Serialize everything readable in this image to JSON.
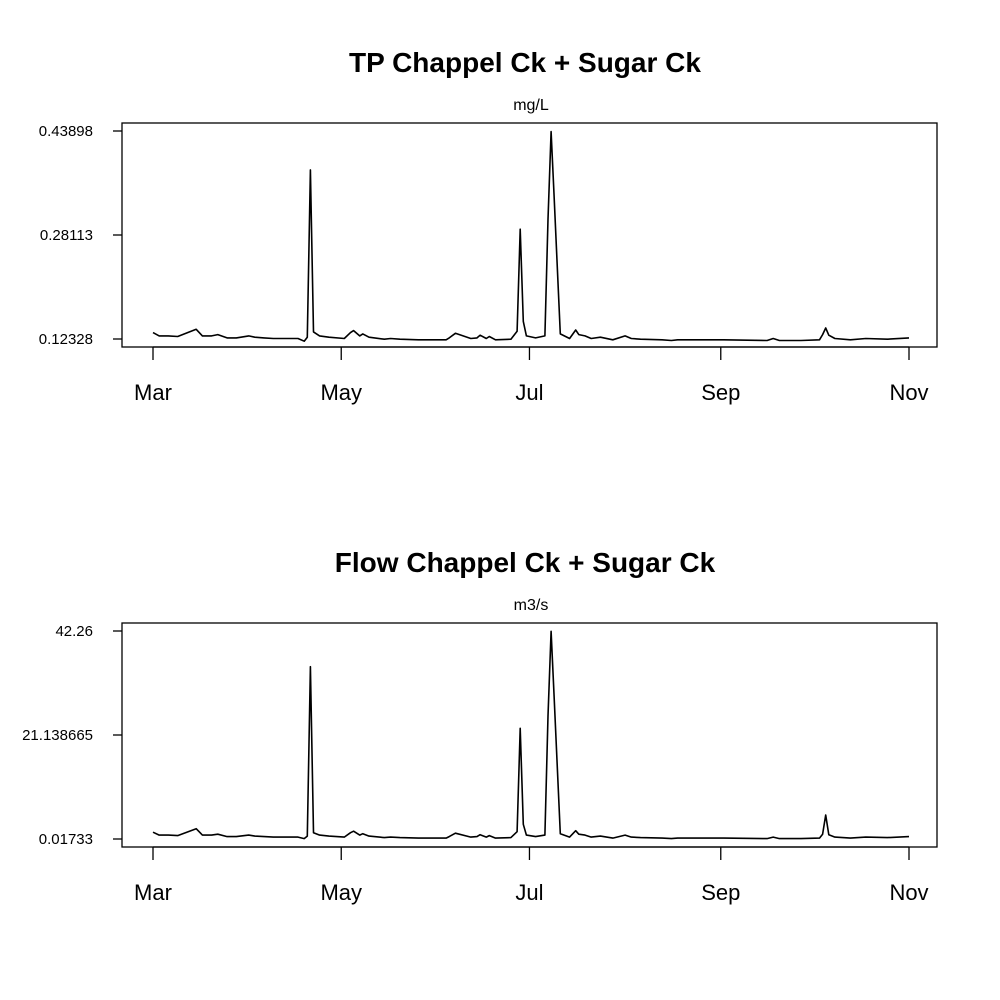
{
  "chart_data": [
    {
      "type": "line",
      "title": "TP Chappel Ck + Sugar Ck",
      "subtitle": "mg/L",
      "y_ticks": [
        "0.12328",
        "0.28113",
        "0.43898"
      ],
      "ylim": [
        0.12328,
        0.43898
      ],
      "x_ticks": [
        "Mar",
        "May",
        "Jul",
        "Sep",
        "Nov"
      ],
      "xlim": [
        "2000-03-01",
        "2000-11-01"
      ],
      "x_dates": [
        "2000-03-01",
        "2000-03-03",
        "2000-03-06",
        "2000-03-09",
        "2000-03-15",
        "2000-03-17",
        "2000-03-20",
        "2000-03-22",
        "2000-03-25",
        "2000-03-28",
        "2000-04-01",
        "2000-04-03",
        "2000-04-06",
        "2000-04-09",
        "2000-04-14",
        "2000-04-17",
        "2000-04-19",
        "2000-04-20",
        "2000-04-21",
        "2000-04-22",
        "2000-04-24",
        "2000-04-27",
        "2000-05-02",
        "2000-05-04",
        "2000-05-05",
        "2000-05-07",
        "2000-05-08",
        "2000-05-10",
        "2000-05-15",
        "2000-05-17",
        "2000-05-20",
        "2000-05-26",
        "2000-06-01",
        "2000-06-04",
        "2000-06-05",
        "2000-06-07",
        "2000-06-12",
        "2000-06-14",
        "2000-06-15",
        "2000-06-17",
        "2000-06-18",
        "2000-06-20",
        "2000-06-25",
        "2000-06-27",
        "2000-06-28",
        "2000-06-29",
        "2000-06-30",
        "2000-07-03",
        "2000-07-06",
        "2000-07-07",
        "2000-07-08",
        "2000-07-09",
        "2000-07-11",
        "2000-07-14",
        "2000-07-16",
        "2000-07-17",
        "2000-07-19",
        "2000-07-21",
        "2000-07-24",
        "2000-07-28",
        "2000-08-01",
        "2000-08-03",
        "2000-08-06",
        "2000-08-13",
        "2000-08-16",
        "2000-08-18",
        "2000-08-25",
        "2000-09-02",
        "2000-09-16",
        "2000-09-18",
        "2000-09-20",
        "2000-09-27",
        "2000-10-03",
        "2000-10-04",
        "2000-10-05",
        "2000-10-06",
        "2000-10-08",
        "2000-10-13",
        "2000-10-18",
        "2000-10-25",
        "2000-11-01"
      ],
      "y_values": [
        0.133,
        0.128,
        0.128,
        0.127,
        0.138,
        0.128,
        0.128,
        0.13,
        0.125,
        0.125,
        0.128,
        0.126,
        0.125,
        0.124,
        0.124,
        0.124,
        0.12,
        0.126,
        0.38,
        0.134,
        0.128,
        0.126,
        0.124,
        0.133,
        0.136,
        0.128,
        0.131,
        0.126,
        0.123,
        0.124,
        0.123,
        0.122,
        0.122,
        0.122,
        0.125,
        0.132,
        0.124,
        0.125,
        0.129,
        0.124,
        0.127,
        0.122,
        0.123,
        0.135,
        0.29,
        0.15,
        0.128,
        0.125,
        0.128,
        0.305,
        0.438,
        0.34,
        0.131,
        0.124,
        0.137,
        0.13,
        0.128,
        0.124,
        0.126,
        0.122,
        0.128,
        0.124,
        0.123,
        0.122,
        0.121,
        0.122,
        0.122,
        0.122,
        0.121,
        0.124,
        0.121,
        0.121,
        0.122,
        0.13,
        0.14,
        0.129,
        0.124,
        0.122,
        0.124,
        0.123,
        0.125
      ]
    },
    {
      "type": "line",
      "title": "Flow Chappel Ck + Sugar Ck",
      "subtitle": "m3/s",
      "y_ticks": [
        "0.01733",
        "21.138665",
        "42.26"
      ],
      "ylim": [
        0.01733,
        42.26
      ],
      "x_ticks": [
        "Mar",
        "May",
        "Jul",
        "Sep",
        "Nov"
      ],
      "xlim": [
        "2000-03-01",
        "2000-11-01"
      ],
      "x_dates": [
        "2000-03-01",
        "2000-03-03",
        "2000-03-06",
        "2000-03-09",
        "2000-03-15",
        "2000-03-17",
        "2000-03-20",
        "2000-03-22",
        "2000-03-25",
        "2000-03-28",
        "2000-04-01",
        "2000-04-03",
        "2000-04-06",
        "2000-04-09",
        "2000-04-14",
        "2000-04-17",
        "2000-04-19",
        "2000-04-20",
        "2000-04-21",
        "2000-04-22",
        "2000-04-24",
        "2000-04-27",
        "2000-05-02",
        "2000-05-04",
        "2000-05-05",
        "2000-05-07",
        "2000-05-08",
        "2000-05-10",
        "2000-05-15",
        "2000-05-17",
        "2000-05-20",
        "2000-05-26",
        "2000-06-01",
        "2000-06-04",
        "2000-06-05",
        "2000-06-07",
        "2000-06-12",
        "2000-06-14",
        "2000-06-15",
        "2000-06-17",
        "2000-06-18",
        "2000-06-20",
        "2000-06-25",
        "2000-06-27",
        "2000-06-28",
        "2000-06-29",
        "2000-06-30",
        "2000-07-03",
        "2000-07-06",
        "2000-07-07",
        "2000-07-08",
        "2000-07-09",
        "2000-07-11",
        "2000-07-14",
        "2000-07-16",
        "2000-07-17",
        "2000-07-19",
        "2000-07-21",
        "2000-07-24",
        "2000-07-28",
        "2000-08-01",
        "2000-08-03",
        "2000-08-06",
        "2000-08-13",
        "2000-08-16",
        "2000-08-18",
        "2000-08-25",
        "2000-09-02",
        "2000-09-16",
        "2000-09-18",
        "2000-09-20",
        "2000-09-27",
        "2000-10-03",
        "2000-10-04",
        "2000-10-05",
        "2000-10-06",
        "2000-10-08",
        "2000-10-13",
        "2000-10-18",
        "2000-10-25",
        "2000-11-01"
      ],
      "y_values": [
        1.4,
        0.8,
        0.8,
        0.7,
        2.1,
        0.8,
        0.8,
        1.0,
        0.5,
        0.5,
        0.8,
        0.6,
        0.5,
        0.4,
        0.4,
        0.4,
        0.1,
        0.6,
        35.0,
        1.3,
        0.8,
        0.6,
        0.4,
        1.3,
        1.6,
        0.8,
        1.1,
        0.6,
        0.3,
        0.4,
        0.3,
        0.2,
        0.2,
        0.2,
        0.5,
        1.2,
        0.4,
        0.5,
        0.9,
        0.4,
        0.7,
        0.2,
        0.3,
        1.5,
        22.5,
        3.0,
        0.8,
        0.5,
        0.8,
        25.0,
        42.2,
        29.0,
        1.1,
        0.4,
        1.7,
        1.0,
        0.8,
        0.4,
        0.6,
        0.2,
        0.8,
        0.4,
        0.3,
        0.2,
        0.1,
        0.2,
        0.2,
        0.2,
        0.1,
        0.4,
        0.1,
        0.1,
        0.2,
        1.0,
        4.9,
        0.9,
        0.4,
        0.2,
        0.4,
        0.3,
        0.5
      ]
    }
  ]
}
